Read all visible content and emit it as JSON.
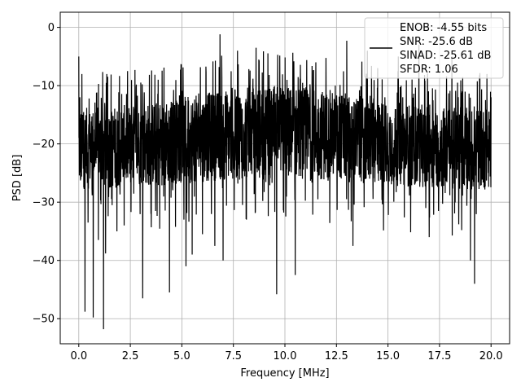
{
  "chart_data": {
    "type": "line",
    "title": "",
    "xlabel": "Frequency [MHz]",
    "ylabel": "PSD [dB]",
    "xlim": [
      -0.9,
      20.9
    ],
    "ylim": [
      -54.3,
      2.6
    ],
    "xticks": [
      0.0,
      2.5,
      5.0,
      7.5,
      10.0,
      12.5,
      15.0,
      17.5,
      20.0
    ],
    "xtick_labels": [
      "0.0",
      "2.5",
      "5.0",
      "7.5",
      "10.0",
      "12.5",
      "15.0",
      "17.5",
      "20.0"
    ],
    "yticks": [
      0,
      -10,
      -20,
      -30,
      -40,
      -50
    ],
    "ytick_labels": [
      "0",
      "−10",
      "−20",
      "−30",
      "−40",
      "−50"
    ],
    "grid": true,
    "legend_position": "top-right",
    "series": [
      {
        "name": "ENOB: -4.55 bits\nSNR: -25.6 dB\nSINAD: -25.61 dB\nSFDR: 1.06",
        "legend_lines": [
          "ENOB: -4.55 bits",
          "SNR: -25.6 dB",
          "SINAD: -25.61 dB",
          "SFDR: 1.06"
        ],
        "color": "#000000",
        "description": "dense noisy PSD spanning 0 to 20 MHz",
        "x_start": 0.0,
        "x_end": 20.0,
        "points": [
          [
            0.0,
            -5
          ],
          [
            0.05,
            -12
          ],
          [
            0.1,
            -26
          ],
          [
            0.15,
            -8
          ],
          [
            0.2,
            -15
          ],
          [
            0.25,
            -27
          ],
          [
            0.3,
            -48.8
          ],
          [
            0.35,
            -20
          ],
          [
            0.45,
            -33.5
          ],
          [
            0.7,
            -49.8
          ],
          [
            0.95,
            -36.5
          ],
          [
            1.2,
            -51.8
          ],
          [
            1.3,
            -38.8
          ],
          [
            1.85,
            -35
          ],
          [
            2.2,
            -34
          ],
          [
            2.5,
            -15
          ],
          [
            3.1,
            -46.5
          ],
          [
            3.5,
            -32
          ],
          [
            4.4,
            -45.5
          ],
          [
            5.1,
            -33
          ],
          [
            5.2,
            -41
          ],
          [
            5.5,
            -39
          ],
          [
            6.0,
            -35.5
          ],
          [
            6.6,
            -37.5
          ],
          [
            7.0,
            -40
          ],
          [
            6.85,
            -1.2
          ],
          [
            7.7,
            -4
          ],
          [
            8.6,
            -3.5
          ],
          [
            9.6,
            -45.8
          ],
          [
            10.1,
            -9
          ],
          [
            10.5,
            -42.5
          ],
          [
            11.5,
            -6
          ],
          [
            13.0,
            -2.3
          ],
          [
            13.3,
            -37.5
          ],
          [
            14.0,
            -4
          ],
          [
            14.5,
            -7
          ],
          [
            15.5,
            -5
          ],
          [
            16.5,
            -3
          ],
          [
            17.0,
            -36
          ],
          [
            18.1,
            -5
          ],
          [
            19.0,
            -40
          ],
          [
            19.2,
            -44
          ],
          [
            19.8,
            -8
          ],
          [
            20.0,
            -12
          ]
        ],
        "typical_range": [
          -30,
          -5
        ]
      }
    ]
  }
}
